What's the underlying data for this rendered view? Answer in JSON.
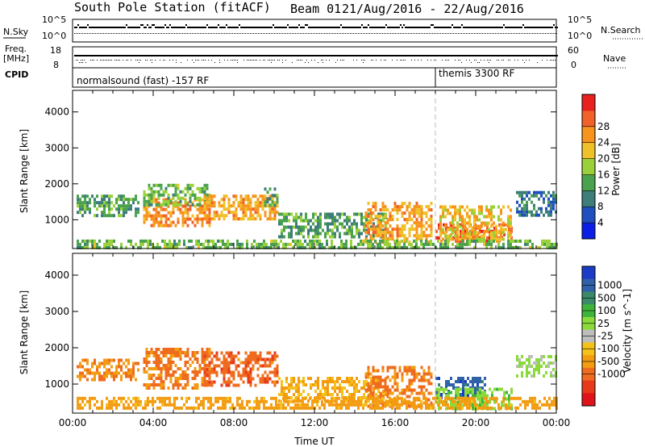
{
  "header": {
    "station": "South Pole Station (fitACF)",
    "beam": "Beam 01",
    "dates": "21/Aug/2016 - 22/Aug/2016"
  },
  "strip": {
    "nsky_label": "N.Sky",
    "nsky_ticks": [
      "10^5",
      "10^0"
    ],
    "nsearch_label": "N.Search",
    "nsearch_ticks": [
      "10^5",
      "10^0"
    ],
    "freq_label_1": "Freq.",
    "freq_label_2": "[MHz]",
    "freq_ticks": [
      "18",
      "8"
    ],
    "nave_label": "Nave",
    "nave_ticks": [
      "60",
      "0"
    ],
    "cpid_label": "CPID",
    "cpid_1": "normalsound (fast) -157 RF",
    "cpid_2": "themis 3300 RF",
    "cpid_switch_hour": 18
  },
  "chart_data": [
    {
      "type": "heatmap",
      "panel": "power",
      "ylabel": "Slant Range [km]",
      "yticks": [
        "1000",
        "2000",
        "3000",
        "4000"
      ],
      "ylim": [
        200,
        4600
      ],
      "xlim_hours": [
        0,
        24
      ],
      "colorbar_label": "Power [dB]",
      "colorbar_ticks": [
        "4",
        "8",
        "12",
        "16",
        "20",
        "24",
        "28"
      ],
      "colorbar_colors": [
        "#0a1ee6",
        "#1f4fbf",
        "#3d7d7a",
        "#4aa14e",
        "#9ad13a",
        "#f0c028",
        "#f7941d",
        "#f0622a",
        "#e8201e"
      ],
      "blobs": [
        {
          "t0": 0.2,
          "t1": 3.3,
          "r0": 1100,
          "r1": 1700,
          "v": 12
        },
        {
          "t0": 3.5,
          "t1": 6.8,
          "r0": 800,
          "r1": 1600,
          "v": 24
        },
        {
          "t0": 3.5,
          "t1": 6.8,
          "r0": 1400,
          "r1": 2000,
          "v": 14
        },
        {
          "t0": 6.5,
          "t1": 10.2,
          "r0": 1000,
          "r1": 1700,
          "v": 22
        },
        {
          "t0": 9.5,
          "t1": 10.2,
          "r0": 1400,
          "r1": 1900,
          "v": 12
        },
        {
          "t0": 10.2,
          "t1": 15.5,
          "r0": 500,
          "r1": 1200,
          "v": 12
        },
        {
          "t0": 14.5,
          "t1": 17.8,
          "r0": 400,
          "r1": 1500,
          "v": 22
        },
        {
          "t0": 18.0,
          "t1": 21.8,
          "r0": 400,
          "r1": 900,
          "v": 26
        },
        {
          "t0": 18.2,
          "t1": 21.8,
          "r0": 500,
          "r1": 1400,
          "v": 20
        },
        {
          "t0": 22.0,
          "t1": 24.0,
          "r0": 1100,
          "r1": 1800,
          "v": 8
        },
        {
          "t0": 0.2,
          "t1": 24.0,
          "r0": 250,
          "r1": 450,
          "v": 14
        }
      ]
    },
    {
      "type": "heatmap",
      "panel": "velocity",
      "xlabel": "Time UT",
      "ylabel": "Slant Range [km]",
      "yticks": [
        "1000",
        "2000",
        "3000",
        "4000"
      ],
      "ylim": [
        200,
        4600
      ],
      "xticks": [
        "00:00",
        "04:00",
        "08:00",
        "12:00",
        "16:00",
        "20:00",
        "00:00"
      ],
      "xlim_hours": [
        0,
        24
      ],
      "colorbar_label": "Velocity [m s^-1]",
      "colorbar_ticks": [
        "1000",
        "500",
        "100",
        "25",
        "-25",
        "-100",
        "-500",
        "-1000"
      ],
      "colorbar_colors": [
        "#1a3cc8",
        "#2f62a8",
        "#3a8a6a",
        "#3fb43a",
        "#8adb3a",
        "#bdbdbd",
        "#f6c21a",
        "#f39c11",
        "#ef6c1e",
        "#e63a1b",
        "#e0121a"
      ],
      "blobs": [
        {
          "t0": 0.2,
          "t1": 3.3,
          "r0": 1100,
          "r1": 1700,
          "v": -150
        },
        {
          "t0": 3.5,
          "t1": 6.8,
          "r0": 900,
          "r1": 2000,
          "v": -200
        },
        {
          "t0": 6.5,
          "t1": 10.2,
          "r0": 1000,
          "r1": 1900,
          "v": -300
        },
        {
          "t0": 10.2,
          "t1": 15.5,
          "r0": 500,
          "r1": 1200,
          "v": -80
        },
        {
          "t0": 14.5,
          "t1": 17.8,
          "r0": 400,
          "r1": 1500,
          "v": -200
        },
        {
          "t0": 18.0,
          "t1": 20.5,
          "r0": 600,
          "r1": 1200,
          "v": 600
        },
        {
          "t0": 18.0,
          "t1": 21.8,
          "r0": 300,
          "r1": 900,
          "v": 60
        },
        {
          "t0": 22.0,
          "t1": 24.0,
          "r0": 1200,
          "r1": 1800,
          "v": 40
        },
        {
          "t0": 0.2,
          "t1": 24.0,
          "r0": 300,
          "r1": 650,
          "v": -120
        }
      ]
    }
  ]
}
